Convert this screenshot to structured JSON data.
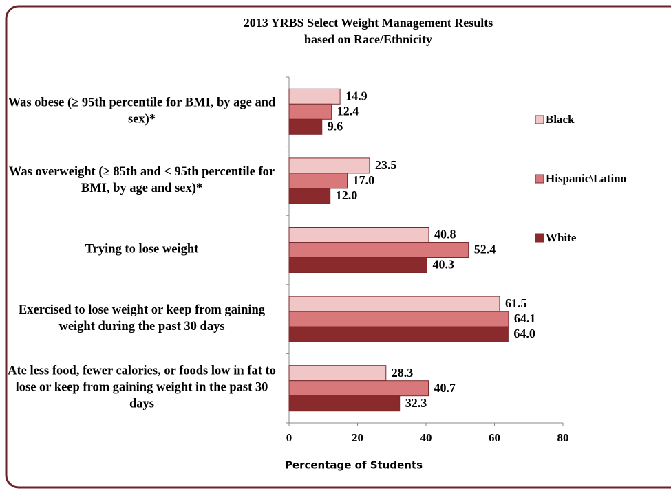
{
  "chart_data": {
    "type": "bar",
    "orientation": "horizontal",
    "title": "2013 YRBS Select  Weight Management Results",
    "subtitle": "based on Race/Ethnicity",
    "xlabel": "Percentage of Students",
    "categories": [
      "Was obese (≥ 95th percentile for BMI, by age and sex)*",
      "Was overweight  (≥ 85th and < 95th percentile for BMI, by age and sex)*",
      "Trying to lose weight",
      "Exercised to lose weight or keep from gaining weight during the past 30 days",
      "Ate less food, fewer calories, or foods low in fat to lose or keep from gaining weight in the past 30 days"
    ],
    "series": [
      {
        "name": "Black",
        "color": "#f1c6c6",
        "values": [
          14.9,
          23.5,
          40.8,
          61.5,
          28.3
        ],
        "value_labels": [
          "14.9",
          "23.5",
          "40.8",
          "61.5",
          "28.3"
        ]
      },
      {
        "name": "Hispanic\\Latino",
        "color": "#d9787b",
        "values": [
          12.4,
          17.0,
          52.4,
          64.1,
          40.7
        ],
        "value_labels": [
          "12.4",
          "17.0",
          "52.4",
          "64.1",
          "40.7"
        ]
      },
      {
        "name": "White",
        "color": "#8a2a2c",
        "values": [
          9.6,
          12.0,
          40.3,
          64.0,
          32.3
        ],
        "value_labels": [
          "9.6",
          "12.0",
          "40.3",
          "64.0",
          "32.3"
        ]
      }
    ],
    "xlim": [
      0,
      80
    ],
    "xticks": [
      0,
      20,
      40,
      60,
      80
    ],
    "legend": "right"
  }
}
